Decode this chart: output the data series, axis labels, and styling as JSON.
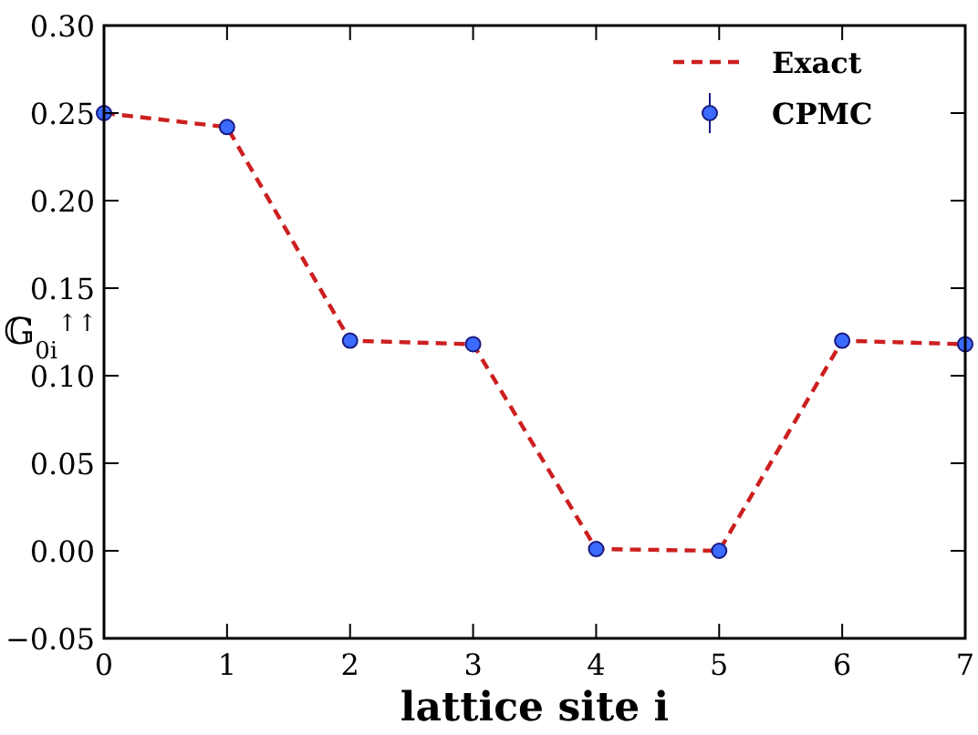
{
  "chart_data": {
    "type": "line",
    "xlabel": "lattice site i",
    "ylabel": "𝔾$_{0i}$$^{↑↑}$",
    "x": [
      0,
      1,
      2,
      3,
      4,
      5,
      6,
      7
    ],
    "series": [
      {
        "name": "Exact",
        "color": "#cc1f1f",
        "line_style": "dashed",
        "marker": "none",
        "values": [
          0.25,
          0.242,
          0.12,
          0.118,
          0.001,
          0.0,
          0.12,
          0.118
        ]
      },
      {
        "name": "CPMC",
        "type": "scatter",
        "color": "#3b6bff",
        "marker": "circle",
        "values": [
          0.25,
          0.242,
          0.12,
          0.118,
          0.001,
          0.0,
          0.12,
          0.118
        ]
      }
    ],
    "xlim": [
      0,
      7
    ],
    "xticks": [
      0,
      1,
      2,
      3,
      4,
      5,
      6,
      7
    ],
    "ylim": [
      -0.05,
      0.3
    ],
    "yticks": [
      {
        "value": -0.05,
        "label": "−0.05"
      },
      {
        "value": 0,
        "label": "0.00"
      },
      {
        "value": 0.05,
        "label": "0.05"
      },
      {
        "value": 0.1,
        "label": "0.10"
      },
      {
        "value": 0.15,
        "label": "0.15"
      },
      {
        "value": 0.2,
        "label": "0.20"
      },
      {
        "value": 0.25,
        "label": "0.25"
      },
      {
        "value": 0.3,
        "label": "0.30"
      }
    ],
    "grid": false,
    "legend": "top right"
  }
}
